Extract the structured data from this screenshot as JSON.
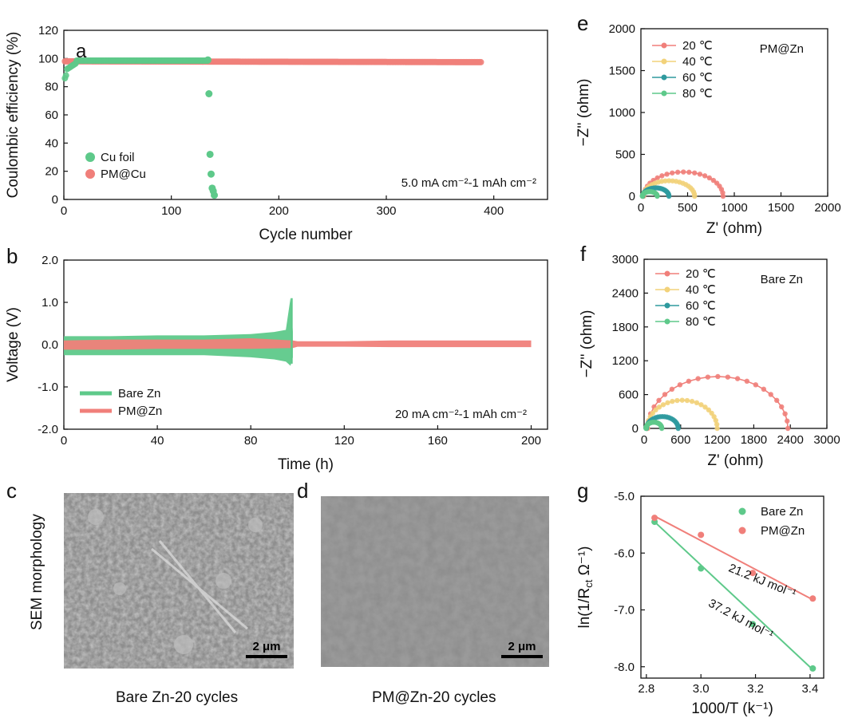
{
  "panels": {
    "a": {
      "letter": "a",
      "chart_data": {
        "type": "scatter",
        "xlabel": "Cycle number",
        "ylabel": "Coulombic efficiency (%)",
        "xlim": [
          0,
          450
        ],
        "ylim": [
          0,
          120
        ],
        "xticks": [
          0,
          100,
          200,
          300,
          400
        ],
        "yticks": [
          0,
          20,
          40,
          60,
          80,
          100,
          120
        ],
        "annotation": "5.0 mA cm⁻²-1 mAh cm⁻²",
        "legend_position": "bottom-left",
        "series": [
          {
            "name": "Cu foil",
            "color": "#5ec98a",
            "x": [
              1,
              2,
              3,
              5,
              8,
              12,
              20,
              40,
              80,
              120,
              134,
              135,
              136,
              137,
              138,
              139,
              140
            ],
            "y": [
              84,
              88,
              91,
              93,
              95,
              97,
              98,
              99,
              99,
              99,
              99,
              75,
              32,
              18,
              8,
              6,
              3
            ]
          },
          {
            "name": "PM@Cu",
            "color": "#f07f7a",
            "x": [
              1,
              50,
              100,
              150,
              200,
              250,
              300,
              350,
              388
            ],
            "y": [
              98,
              98,
              98.5,
              98.5,
              98.5,
              98.2,
              98,
              97.8,
              97.5
            ]
          }
        ]
      }
    },
    "b": {
      "letter": "b",
      "chart_data": {
        "type": "line",
        "xlabel": "Time (h)",
        "ylabel": "Voltage (V)",
        "xlim": [
          0,
          207
        ],
        "ylim": [
          -2.0,
          2.0
        ],
        "xticks": [
          0,
          40,
          80,
          120,
          160,
          200
        ],
        "yticks": [
          -2.0,
          -1.0,
          0.0,
          1.0,
          2.0
        ],
        "ytick_labels": [
          "-2.0",
          "-1.0",
          "0.0",
          "1.0",
          "2.0"
        ],
        "annotation": "20 mA cm⁻²-1 mAh cm⁻²",
        "legend_position": "bottom-left",
        "series": [
          {
            "name": "Bare Zn",
            "color": "#5ec98a",
            "x": [
              0,
              20,
              40,
              60,
              80,
              90,
              95,
              97,
              98
            ],
            "upper": [
              0.2,
              0.2,
              0.22,
              0.22,
              0.25,
              0.3,
              0.35,
              1.1,
              0.3
            ],
            "lower": [
              -0.25,
              -0.25,
              -0.25,
              -0.25,
              -0.3,
              -0.35,
              -0.4,
              -0.5,
              -0.3
            ]
          },
          {
            "name": "PM@Zn",
            "color": "#f07f7a",
            "x": [
              0,
              20,
              40,
              60,
              80,
              98,
              100,
              120,
              140,
              160,
              180,
              200
            ],
            "upper": [
              0.1,
              0.12,
              0.12,
              0.12,
              0.15,
              0.1,
              0.08,
              0.08,
              0.1,
              0.1,
              0.1,
              0.1
            ],
            "lower": [
              -0.12,
              -0.12,
              -0.1,
              -0.1,
              -0.1,
              -0.08,
              -0.05,
              -0.05,
              -0.06,
              -0.06,
              -0.06,
              -0.06
            ]
          }
        ]
      }
    },
    "c": {
      "letter": "c",
      "caption": "Bare Zn-20 cycles",
      "scale": "2 μm"
    },
    "d": {
      "letter": "d",
      "caption": "PM@Zn-20 cycles",
      "scale": "2 μm"
    },
    "sem_side_label": "SEM morphology",
    "e": {
      "letter": "e",
      "chart_data": {
        "type": "scatter",
        "title": "PM@Zn",
        "xlabel": "Z' (ohm)",
        "ylabel": "−Z'' (ohm)",
        "xlim": [
          0,
          2000
        ],
        "ylim": [
          0,
          2000
        ],
        "xticks": [
          0,
          500,
          1000,
          1500,
          2000
        ],
        "yticks": [
          0,
          500,
          1000,
          1500,
          2000
        ],
        "legend_position": "top-left",
        "series": [
          {
            "name": "20 ℃",
            "color": "#f07f7a",
            "x_start": 30,
            "x_end": 880,
            "peak": 290
          },
          {
            "name": "40 ℃",
            "color": "#f2d27a",
            "x_start": 25,
            "x_end": 575,
            "peak": 185
          },
          {
            "name": "60 ℃",
            "color": "#2f9a9e",
            "x_start": 20,
            "x_end": 300,
            "peak": 100
          },
          {
            "name": "80 ℃",
            "color": "#5ec98a",
            "x_start": 15,
            "x_end": 175,
            "peak": 55
          }
        ]
      }
    },
    "f": {
      "letter": "f",
      "chart_data": {
        "type": "scatter",
        "title": "Bare Zn",
        "xlabel": "Z' (ohm)",
        "ylabel": "−Z'' (ohm)",
        "xlim": [
          0,
          3000
        ],
        "ylim": [
          0,
          3000
        ],
        "xticks": [
          0,
          600,
          1200,
          1800,
          2400,
          3000
        ],
        "yticks": [
          0,
          600,
          1200,
          1800,
          2400,
          3000
        ],
        "legend_position": "top-left",
        "series": [
          {
            "name": "20 ℃",
            "color": "#f07f7a",
            "x_start": 60,
            "x_end": 2360,
            "peak": 920
          },
          {
            "name": "40 ℃",
            "color": "#f2d27a",
            "x_start": 50,
            "x_end": 1200,
            "peak": 500
          },
          {
            "name": "60 ℃",
            "color": "#2f9a9e",
            "x_start": 40,
            "x_end": 560,
            "peak": 210
          },
          {
            "name": "80 ℃",
            "color": "#5ec98a",
            "x_start": 30,
            "x_end": 290,
            "peak": 110
          }
        ]
      }
    },
    "g": {
      "letter": "g",
      "chart_data": {
        "type": "scatter",
        "xlabel": "1000/T (k⁻¹)",
        "ylabel": "ln(1/R",
        "ylabel_sub": "ct",
        "ylabel_tail": " Ω⁻¹)",
        "xlim": [
          2.78,
          3.45
        ],
        "ylim": [
          -8.2,
          -5.0
        ],
        "xticks": [
          2.8,
          3.0,
          3.2,
          3.4
        ],
        "xtick_labels": [
          "2.8",
          "3.0",
          "3.2",
          "3.4"
        ],
        "yticks": [
          -8.0,
          -7.0,
          -6.0,
          -5.0
        ],
        "ytick_labels": [
          "-8.0",
          "-7.0",
          "-6.0",
          "-5.0"
        ],
        "legend_position": "top-right",
        "series": [
          {
            "name": "Bare Zn",
            "color": "#5ec98a",
            "x": [
              2.83,
              3.0,
              3.19,
              3.41
            ],
            "y": [
              -5.45,
              -6.27,
              -7.25,
              -8.03
            ],
            "fit": [
              [
                2.83,
                -5.45
              ],
              [
                3.41,
                -8.05
              ]
            ],
            "label": "37.2 kJ mol⁻¹"
          },
          {
            "name": "PM@Zn",
            "color": "#f07f7a",
            "x": [
              2.83,
              3.0,
              3.19,
              3.41
            ],
            "y": [
              -5.38,
              -5.68,
              -6.35,
              -6.8
            ],
            "fit": [
              [
                2.83,
                -5.35
              ],
              [
                3.41,
                -6.82
              ]
            ],
            "label": "21.2 kJ mol⁻¹"
          }
        ]
      }
    }
  }
}
